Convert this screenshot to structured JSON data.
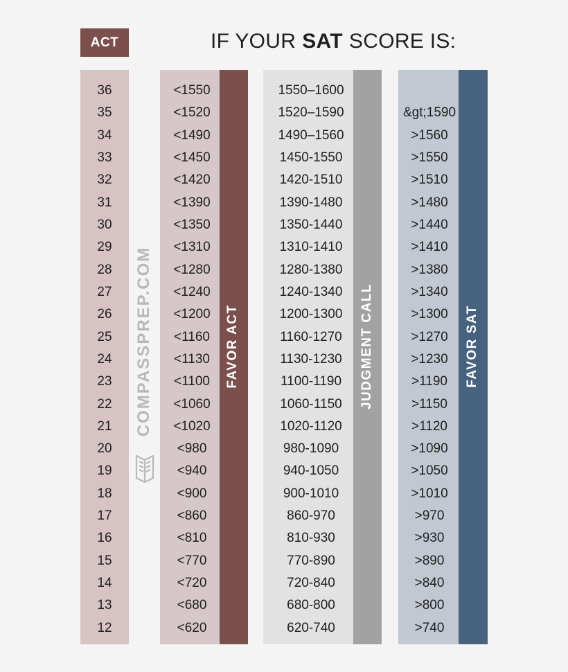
{
  "header": {
    "act_badge": "ACT",
    "title_prefix": "IF YOUR",
    "title_bold": "SAT",
    "title_suffix": "SCORE IS:"
  },
  "bars": {
    "favor_act": "FAVOR ACT",
    "judgment_call": "JUDGMENT CALL",
    "favor_sat": "FAVOR SAT"
  },
  "watermark": "COMPASSPREP.COM",
  "logo_icon": "open-book-logo-icon",
  "colors": {
    "act_dark": "#7b4f4c",
    "act_light": "#d7c3c3",
    "judgment_dark": "#a2a2a2",
    "judgment_light": "#e2e2e2",
    "sat_dark": "#46627f",
    "sat_light": "#c2c8d1"
  },
  "table": {
    "act_scores": [
      "36",
      "35",
      "34",
      "33",
      "32",
      "31",
      "30",
      "29",
      "28",
      "27",
      "26",
      "25",
      "24",
      "23",
      "22",
      "21",
      "20",
      "19",
      "18",
      "17",
      "16",
      "15",
      "14",
      "13",
      "12"
    ],
    "favor_act_sat": [
      "<1550",
      "<1520",
      "<1490",
      "<1450",
      "<1420",
      "<1390",
      "<1350",
      "<1310",
      "<1280",
      "<1240",
      "<1200",
      "<1160",
      "<1130",
      "<1100",
      "<1060",
      "<1020",
      "<980",
      "<940",
      "<900",
      "<860",
      "<810",
      "<770",
      "<720",
      "<680",
      "<620"
    ],
    "judgment_sat": [
      "1550–1600",
      "1520–1590",
      "1490–1560",
      "1450-1550",
      "1420-1510",
      "1390-1480",
      "1350-1440",
      "1310-1410",
      "1280-1380",
      "1240-1340",
      "1200-1300",
      "1160-1270",
      "1130-1230",
      "1100-1190",
      "1060-1150",
      "1020-1120",
      "980-1090",
      "940-1050",
      "900-1010",
      "860-970",
      "810-930",
      "770-890",
      "720-840",
      "680-800",
      "620-740"
    ],
    "favor_sat_sat": [
      "",
      "&gt;1590",
      ">1560",
      ">1550",
      ">1510",
      ">1480",
      ">1440",
      ">1410",
      ">1380",
      ">1340",
      ">1300",
      ">1270",
      ">1230",
      ">1190",
      ">1150",
      ">1120",
      ">1090",
      ">1050",
      ">1010",
      ">970",
      ">930",
      ">890",
      ">840",
      ">800",
      ">740"
    ]
  }
}
